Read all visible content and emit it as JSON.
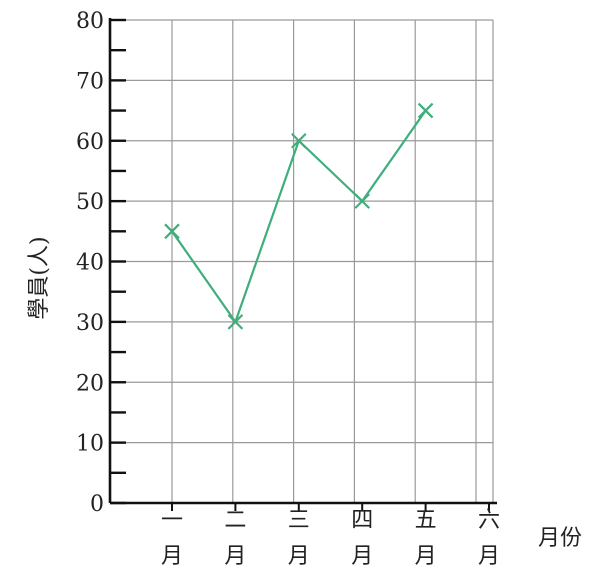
{
  "chart_data": {
    "type": "line",
    "categories": [
      [
        "一",
        "月"
      ],
      [
        "二",
        "月"
      ],
      [
        "三",
        "月"
      ],
      [
        "四",
        "月"
      ],
      [
        "五",
        "月"
      ],
      [
        "六",
        "月"
      ]
    ],
    "series": [
      {
        "values": [
          45,
          30,
          60,
          50,
          65,
          null
        ]
      }
    ],
    "ylabel": "學員(人)",
    "xlabel": "月份",
    "ylim": [
      0,
      80
    ],
    "yticks": [
      "0",
      "10",
      "20",
      "30",
      "40",
      "50",
      "60",
      "70",
      "80"
    ],
    "grid": true,
    "line_color": "#3fae7a",
    "marker": "x"
  }
}
